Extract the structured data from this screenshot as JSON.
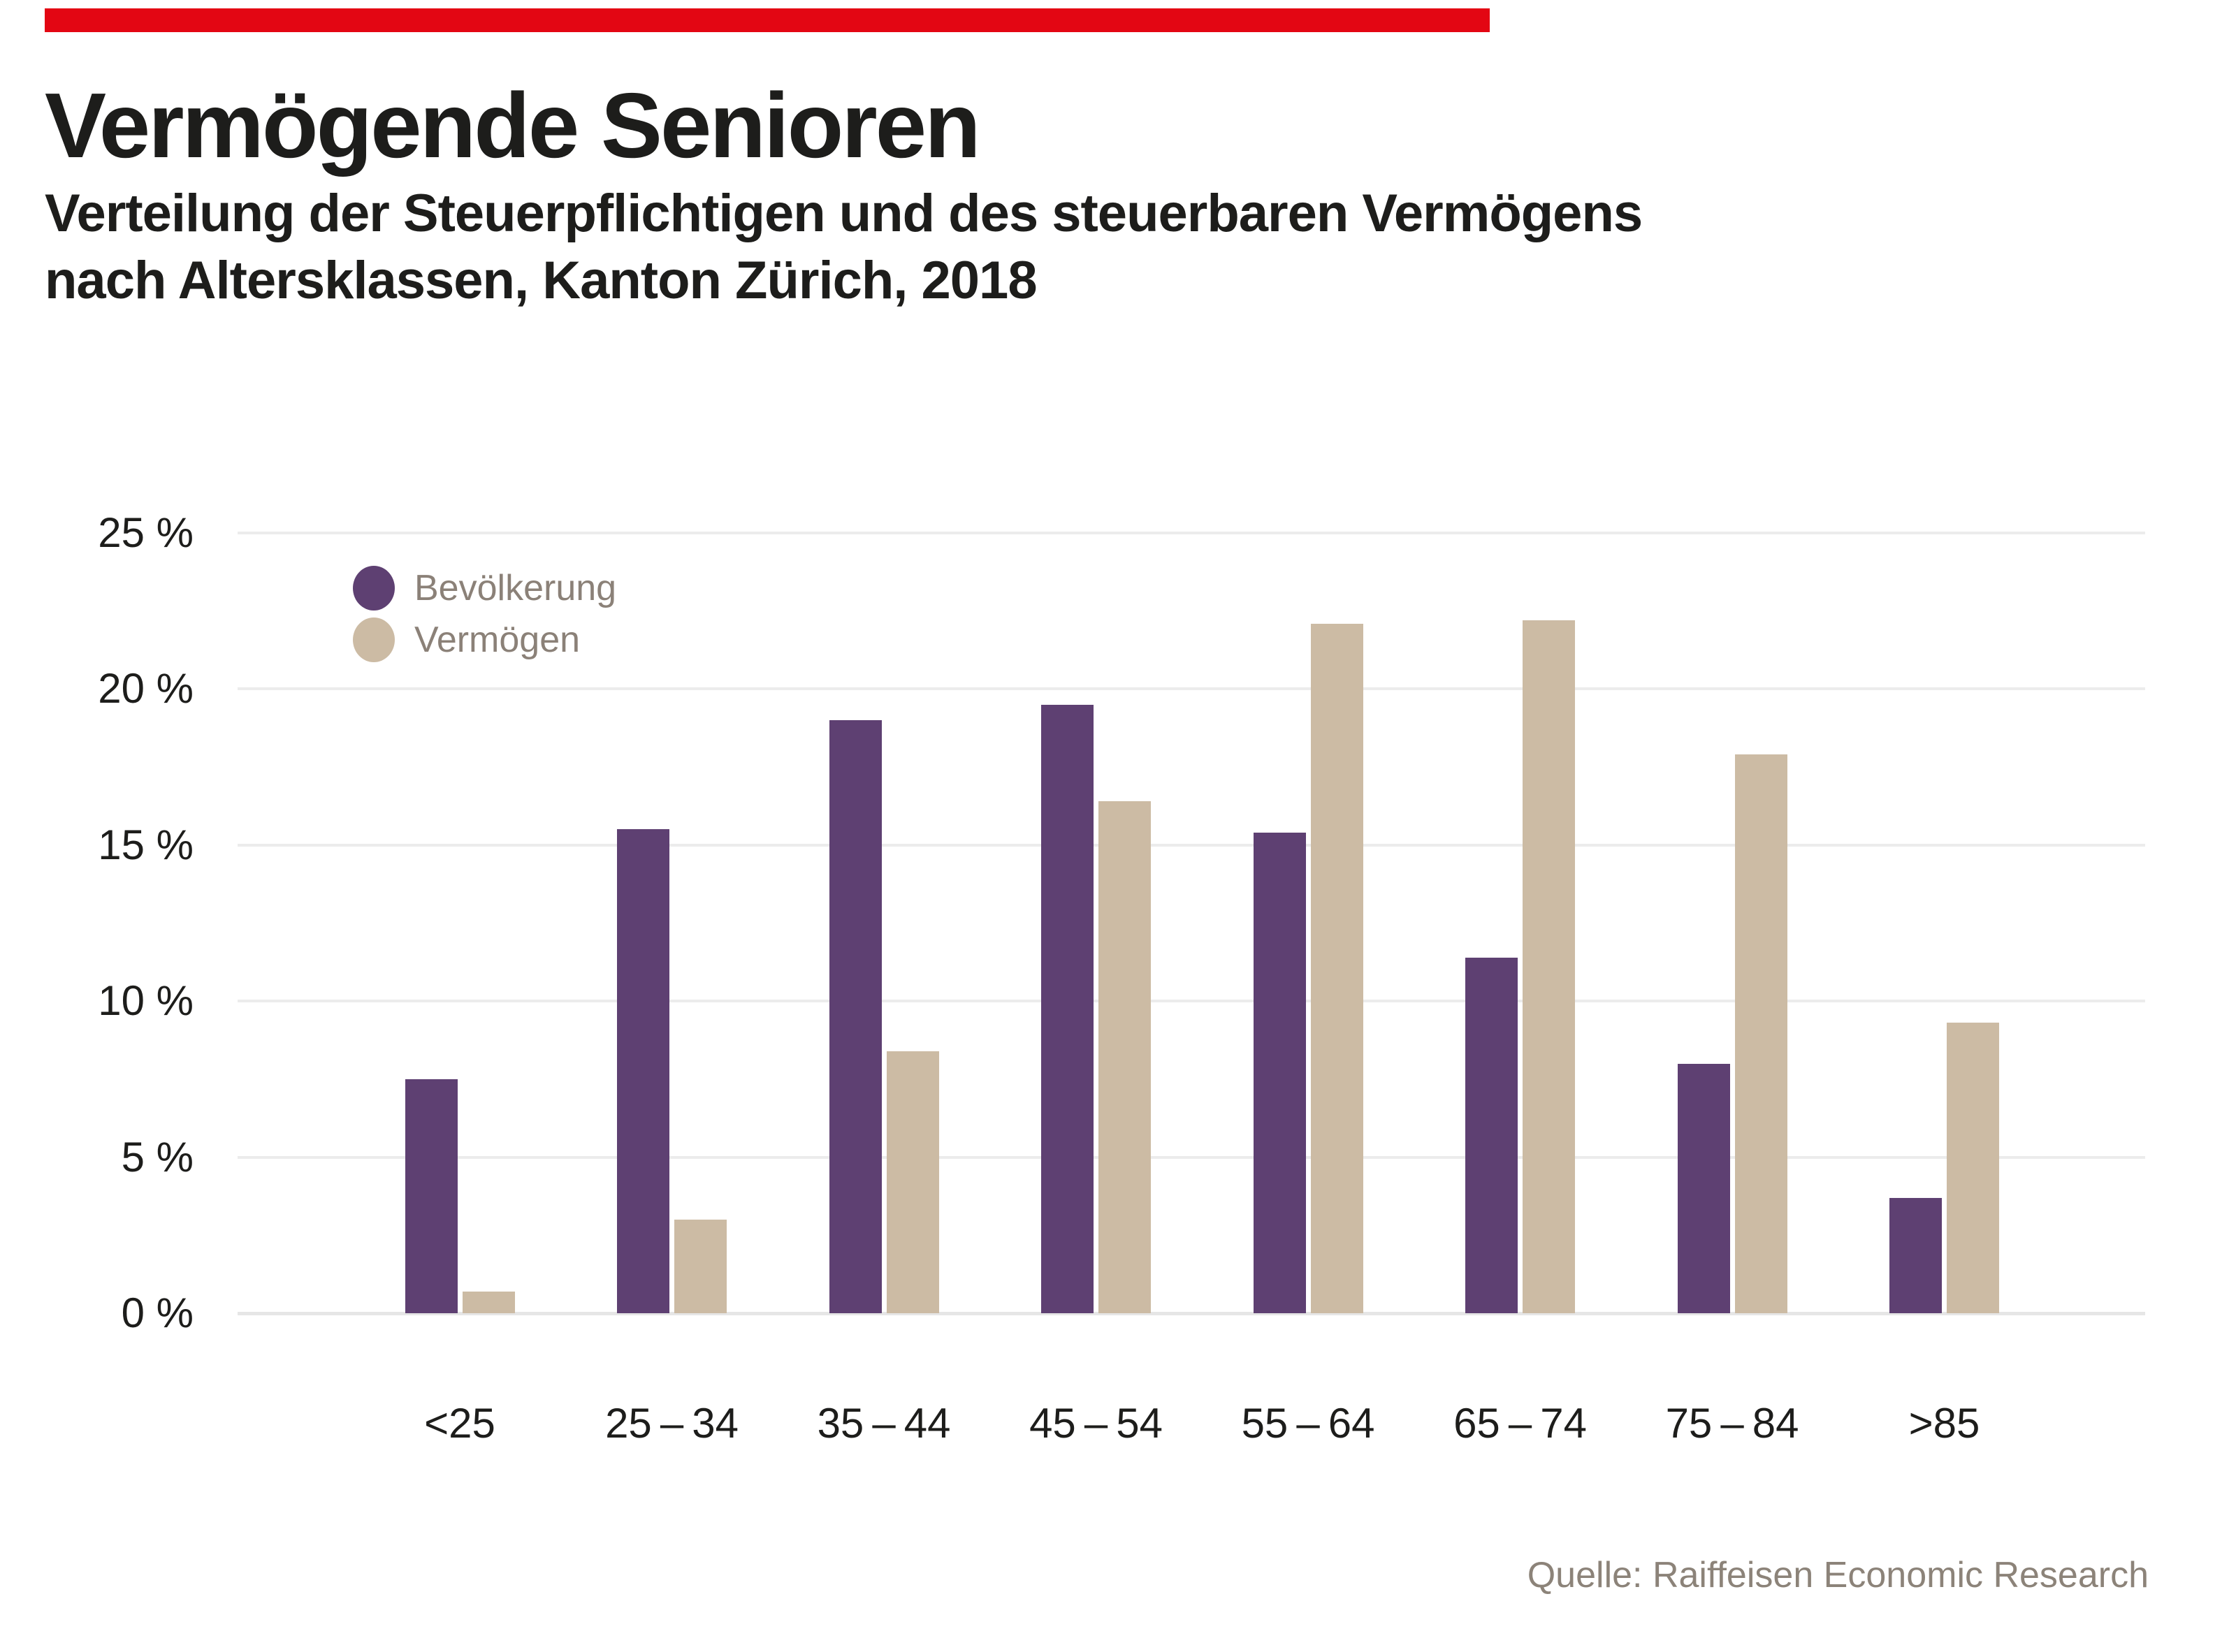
{
  "brand": {
    "accent_color": "#e30613"
  },
  "title": "Vermögende Senioren",
  "subtitle_line1": "Verteilung der Steuerpflichtigen und des steuerbaren Vermögens",
  "subtitle_line2": "nach Altersklassen, Kanton Zürich, 2018",
  "source": "Quelle: Raiffeisen Economic Research",
  "legend": [
    {
      "label": "Bevölkerung",
      "color": "#5e4072"
    },
    {
      "label": "Vermögen",
      "color": "#ccbba4"
    }
  ],
  "y_axis": {
    "ticks": [
      "25 %",
      "20 %",
      "15 %",
      "10 %",
      "5 %",
      "0 %"
    ],
    "min": 0,
    "max": 25,
    "step": 5
  },
  "chart_data": {
    "type": "bar",
    "title": "Vermögende Senioren",
    "subtitle": "Verteilung der Steuerpflichtigen und des steuerbaren Vermögens nach Altersklassen, Kanton Zürich, 2018",
    "categories": [
      "<25",
      "25 – 34",
      "35 – 44",
      "45 – 54",
      "55 – 64",
      "65 – 74",
      "75 – 84",
      ">85"
    ],
    "series": [
      {
        "name": "Bevölkerung",
        "color": "#5e4072",
        "values": [
          7.5,
          15.5,
          19.0,
          19.5,
          15.4,
          11.4,
          8.0,
          3.7
        ]
      },
      {
        "name": "Vermögen",
        "color": "#ccbba4",
        "values": [
          0.7,
          3.0,
          8.4,
          16.4,
          22.1,
          22.2,
          17.9,
          9.3
        ]
      }
    ],
    "xlabel": "",
    "ylabel": "",
    "ylim": [
      0,
      25
    ],
    "grid": true,
    "legend_position": "top-left-inside",
    "source": "Quelle: Raiffeisen Economic Research"
  }
}
